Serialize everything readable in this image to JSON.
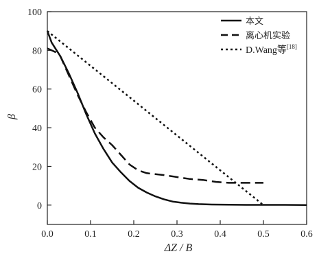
{
  "chart_data": {
    "type": "line",
    "title": "",
    "xlabel": "ΔZ / B",
    "ylabel": "β",
    "xlim": [
      0,
      0.6
    ],
    "ylim": [
      -10,
      100
    ],
    "xticks": [
      0.0,
      0.1,
      0.2,
      0.3,
      0.4,
      0.5,
      0.6
    ],
    "xtick_labels": [
      "0.0",
      "0.1",
      "0.2",
      "0.3",
      "0.4",
      "0.5",
      "0.6"
    ],
    "yticks": [
      0,
      20,
      40,
      60,
      80,
      100
    ],
    "ytick_labels": [
      "0",
      "20",
      "40",
      "60",
      "80",
      "100"
    ],
    "grid": false,
    "legend_position": "top-right",
    "series": [
      {
        "name": "本文",
        "style": "solid",
        "color": "#111111",
        "x": [
          0.0,
          0.01,
          0.03,
          0.05,
          0.07,
          0.09,
          0.11,
          0.13,
          0.15,
          0.17,
          0.19,
          0.21,
          0.23,
          0.25,
          0.27,
          0.29,
          0.31,
          0.33,
          0.35,
          0.38,
          0.42,
          0.46,
          0.5,
          0.55,
          0.6
        ],
        "y": [
          90,
          84,
          77,
          68,
          58,
          47,
          37,
          29,
          22,
          17,
          12.5,
          9,
          6.5,
          4.5,
          3,
          1.8,
          1.2,
          0.8,
          0.5,
          0.3,
          0.2,
          0.1,
          0.1,
          0.1,
          0
        ]
      },
      {
        "name": "离心机实验",
        "style": "dashed",
        "color": "#111111",
        "x": [
          0.0,
          0.01,
          0.02,
          0.03,
          0.05,
          0.07,
          0.09,
          0.11,
          0.13,
          0.15,
          0.17,
          0.19,
          0.21,
          0.23,
          0.25,
          0.27,
          0.3,
          0.33,
          0.36,
          0.39,
          0.42,
          0.45,
          0.47,
          0.5
        ],
        "y": [
          81,
          80,
          79,
          77,
          67,
          57,
          48,
          40,
          35,
          31,
          26,
          21,
          18,
          16.5,
          16,
          15.5,
          14.5,
          13.5,
          13,
          12,
          11.5,
          11.5,
          11.5,
          11.5
        ]
      },
      {
        "name": "D.Wang等",
        "name_superscript": "[18]",
        "style": "dotted",
        "color": "#111111",
        "x": [
          0.0,
          0.1,
          0.2,
          0.3,
          0.4,
          0.5
        ],
        "y": [
          90,
          72,
          54,
          36,
          18,
          0
        ]
      }
    ]
  }
}
